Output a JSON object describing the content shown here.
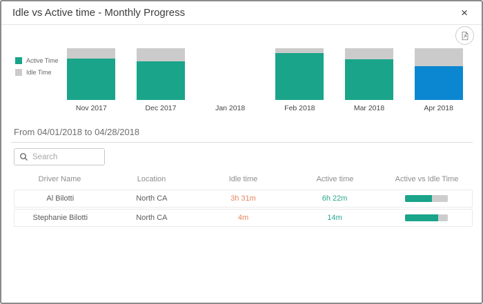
{
  "dialog": {
    "title": "Idle vs Active time - Monthly Progress",
    "close_glyph": "×"
  },
  "toolbar": {
    "export_icon": "export-report-icon"
  },
  "colors": {
    "active_teal": "#1aa489",
    "idle_gray": "#cbcbcb",
    "selected_blue": "#0b87d1",
    "idle_text_orange": "#e8845d",
    "active_text_teal": "#2aa78d",
    "progress_track_gray": "#cdcdcd"
  },
  "chart_data": {
    "type": "bar",
    "stacked": true,
    "title": "Idle vs Active time - Monthly Progress",
    "categories": [
      "Nov 2017",
      "Dec 2017",
      "Jan 2018",
      "Feb 2018",
      "Mar 2018",
      "Apr 2018"
    ],
    "series": [
      {
        "name": "Active Time",
        "values_pct": [
          80,
          75,
          null,
          91,
          79,
          65
        ]
      },
      {
        "name": "Idle Time",
        "values_pct": [
          20,
          25,
          null,
          9,
          21,
          35
        ]
      }
    ],
    "selected_index": 5,
    "selected_category": "Apr 2018",
    "ylim": [
      0,
      100
    ],
    "legend_position": "left",
    "grid": false
  },
  "period": {
    "label": "From 04/01/2018 to 04/28/2018"
  },
  "search": {
    "placeholder": "Search"
  },
  "table": {
    "columns": [
      "Driver Name",
      "Location",
      "Idle time",
      "Active time",
      "Active vs Idle Time"
    ],
    "rows": [
      {
        "driver": "Al Bilotti",
        "location": "North CA",
        "idle": "3h 31m",
        "active": "6h 22m",
        "active_pct": 64
      },
      {
        "driver": "Stephanie Bilotti",
        "location": "North CA",
        "idle": "4m",
        "active": "14m",
        "active_pct": 78
      }
    ]
  }
}
